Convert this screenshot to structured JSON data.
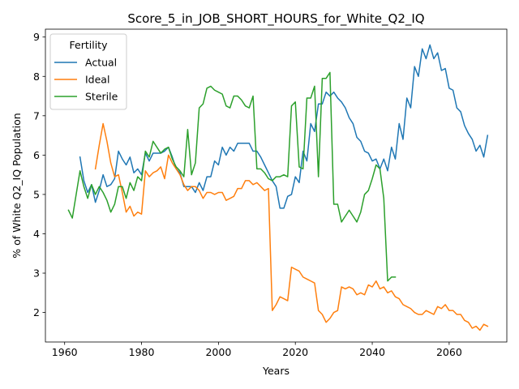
{
  "chart_data": {
    "type": "line",
    "title": "Score_5_in_JOB_SHORT_HOURS_for_White_Q2_IQ",
    "xlabel": "Years",
    "ylabel": "% of White Q2_IQ Population",
    "xlim": [
      1955,
      2075
    ],
    "ylim": [
      1.25,
      9.2
    ],
    "xticks": [
      1960,
      1980,
      2000,
      2020,
      2040,
      2060
    ],
    "yticks": [
      2,
      3,
      4,
      5,
      6,
      7,
      8,
      9
    ],
    "grid": false,
    "legend": {
      "title": "Fertility",
      "placement": "top-left"
    },
    "series": [
      {
        "name": "Actual",
        "color": "#1f77b4",
        "x": [
          1964,
          1965,
          1966,
          1967,
          1968,
          1969,
          1970,
          1971,
          1972,
          1973,
          1974,
          1975,
          1976,
          1977,
          1978,
          1979,
          1980,
          1981,
          1982,
          1983,
          1984,
          1985,
          1986,
          1987,
          1988,
          1989,
          1990,
          1991,
          1992,
          1993,
          1994,
          1995,
          1996,
          1997,
          1998,
          1999,
          2000,
          2001,
          2002,
          2003,
          2004,
          2005,
          2006,
          2007,
          2008,
          2009,
          2010,
          2011,
          2012,
          2013,
          2014,
          2015,
          2016,
          2017,
          2018,
          2019,
          2020,
          2021,
          2022,
          2023,
          2024,
          2025,
          2026,
          2027,
          2028,
          2029,
          2030,
          2031,
          2032,
          2033,
          2034,
          2035,
          2036,
          2037,
          2038,
          2039,
          2040,
          2041,
          2042,
          2043,
          2044,
          2045,
          2046,
          2047,
          2048,
          2049,
          2050,
          2051,
          2052,
          2053,
          2054,
          2055,
          2056,
          2057,
          2058,
          2059,
          2060,
          2061,
          2062,
          2063,
          2064,
          2065,
          2066,
          2067,
          2068,
          2069,
          2070
        ],
        "y": [
          5.95,
          5.35,
          5.05,
          5.25,
          4.8,
          5.1,
          5.5,
          5.2,
          5.25,
          5.4,
          6.1,
          5.9,
          5.75,
          5.95,
          5.55,
          5.65,
          5.5,
          6.05,
          5.85,
          6.05,
          6.05,
          6.05,
          6.1,
          6.2,
          5.95,
          5.65,
          5.55,
          5.2,
          5.2,
          5.2,
          5.05,
          5.3,
          5.1,
          5.45,
          5.45,
          5.85,
          5.75,
          6.2,
          6,
          6.2,
          6.1,
          6.3,
          6.3,
          6.3,
          6.3,
          6.1,
          6.1,
          5.95,
          5.75,
          5.55,
          5.35,
          5.2,
          4.65,
          4.65,
          4.95,
          5,
          5.45,
          5.3,
          6.1,
          5.85,
          6.8,
          6.6,
          7.3,
          7.3,
          7.6,
          7.5,
          7.6,
          7.45,
          7.35,
          7.2,
          6.95,
          6.8,
          6.45,
          6.35,
          6.1,
          6.05,
          5.85,
          5.9,
          5.65,
          5.9,
          5.6,
          6.2,
          5.9,
          6.8,
          6.4,
          7.45,
          7.2,
          8.25,
          8,
          8.7,
          8.45,
          8.8,
          8.45,
          8.6,
          8.15,
          8.2,
          7.7,
          7.65,
          7.2,
          7.1,
          6.75,
          6.55,
          6.4,
          6.1,
          6.25,
          5.95,
          6.5
        ]
      },
      {
        "name": "Ideal",
        "color": "#ff7f0e",
        "x": [
          1968,
          1969,
          1970,
          1971,
          1972,
          1973,
          1974,
          1975,
          1976,
          1977,
          1978,
          1979,
          1980,
          1981,
          1982,
          1983,
          1984,
          1985,
          1986,
          1987,
          1988,
          1989,
          1990,
          1991,
          1992,
          1993,
          1994,
          1995,
          1996,
          1997,
          1998,
          1999,
          2000,
          2001,
          2002,
          2003,
          2004,
          2005,
          2006,
          2007,
          2008,
          2009,
          2010,
          2011,
          2012,
          2013,
          2014,
          2015,
          2016,
          2017,
          2018,
          2019,
          2020,
          2021,
          2022,
          2023,
          2024,
          2025,
          2026,
          2027,
          2028,
          2029,
          2030,
          2031,
          2032,
          2033,
          2034,
          2035,
          2036,
          2037,
          2038,
          2039,
          2040,
          2041,
          2042,
          2043,
          2044,
          2045,
          2046,
          2047,
          2048,
          2049,
          2050,
          2051,
          2052,
          2053,
          2054,
          2055,
          2056,
          2057,
          2058,
          2059,
          2060,
          2061,
          2062,
          2063,
          2064,
          2065,
          2066,
          2067,
          2068,
          2069,
          2070
        ],
        "y": [
          5.65,
          6.25,
          6.8,
          6.35,
          5.8,
          5.45,
          5.5,
          5.05,
          4.55,
          4.7,
          4.45,
          4.55,
          4.5,
          5.6,
          5.45,
          5.55,
          5.6,
          5.7,
          5.4,
          6,
          5.8,
          5.65,
          5.5,
          5.25,
          5.1,
          5.2,
          5.2,
          5.1,
          4.9,
          5.05,
          5.05,
          5.0,
          5.05,
          5.05,
          4.85,
          4.9,
          4.95,
          5.15,
          5.15,
          5.35,
          5.35,
          5.25,
          5.3,
          5.2,
          5.1,
          5.15,
          2.05,
          2.2,
          2.4,
          2.35,
          2.3,
          3.15,
          3.1,
          3.05,
          2.9,
          2.85,
          2.8,
          2.75,
          2.05,
          1.95,
          1.75,
          1.85,
          2.0,
          2.05,
          2.65,
          2.6,
          2.65,
          2.6,
          2.45,
          2.5,
          2.45,
          2.7,
          2.65,
          2.8,
          2.6,
          2.65,
          2.5,
          2.55,
          2.4,
          2.35,
          2.2,
          2.15,
          2.1,
          2.0,
          1.95,
          1.95,
          2.05,
          2.0,
          1.95,
          2.15,
          2.1,
          2.2,
          2.05,
          2.05,
          1.95,
          1.95,
          1.8,
          1.75,
          1.6,
          1.65,
          1.55,
          1.7,
          1.65
        ]
      },
      {
        "name": "Sterile",
        "color": "#2ca02c",
        "x": [
          1961,
          1962,
          1963,
          1964,
          1965,
          1966,
          1967,
          1968,
          1969,
          1970,
          1971,
          1972,
          1973,
          1974,
          1975,
          1976,
          1977,
          1978,
          1979,
          1980,
          1981,
          1982,
          1983,
          1984,
          1985,
          1986,
          1987,
          1988,
          1989,
          1990,
          1991,
          1992,
          1993,
          1994,
          1995,
          1996,
          1997,
          1998,
          1999,
          2000,
          2001,
          2002,
          2003,
          2004,
          2005,
          2006,
          2007,
          2008,
          2009,
          2010,
          2011,
          2012,
          2013,
          2014,
          2015,
          2016,
          2017,
          2018,
          2019,
          2020,
          2021,
          2022,
          2023,
          2024,
          2025,
          2026,
          2027,
          2028,
          2029,
          2030,
          2031,
          2032,
          2033,
          2034,
          2035,
          2036,
          2037,
          2038,
          2039,
          2040,
          2041,
          2042,
          2043,
          2044,
          2045,
          2046
        ],
        "y": [
          4.6,
          4.4,
          5.0,
          5.6,
          5.2,
          4.9,
          5.25,
          5.0,
          5.2,
          5.05,
          4.85,
          4.55,
          4.75,
          5.2,
          5.2,
          4.9,
          5.3,
          5.1,
          5.45,
          5.35,
          6.1,
          5.95,
          6.35,
          6.2,
          6.05,
          6.15,
          6.2,
          5.9,
          5.7,
          5.6,
          5.45,
          6.65,
          5.5,
          5.8,
          7.2,
          7.3,
          7.7,
          7.75,
          7.65,
          7.6,
          7.55,
          7.25,
          7.2,
          7.5,
          7.5,
          7.4,
          7.25,
          7.2,
          7.5,
          5.65,
          5.65,
          5.55,
          5.4,
          5.35,
          5.45,
          5.45,
          5.5,
          5.45,
          7.25,
          7.35,
          5.7,
          5.65,
          7.45,
          7.45,
          7.75,
          5.45,
          7.95,
          7.95,
          8.1,
          4.75,
          4.75,
          4.3,
          4.45,
          4.6,
          4.45,
          4.3,
          4.55,
          5.0,
          5.1,
          5.4,
          5.75,
          5.65,
          4.9,
          2.8,
          2.9,
          2.9
        ]
      }
    ]
  }
}
